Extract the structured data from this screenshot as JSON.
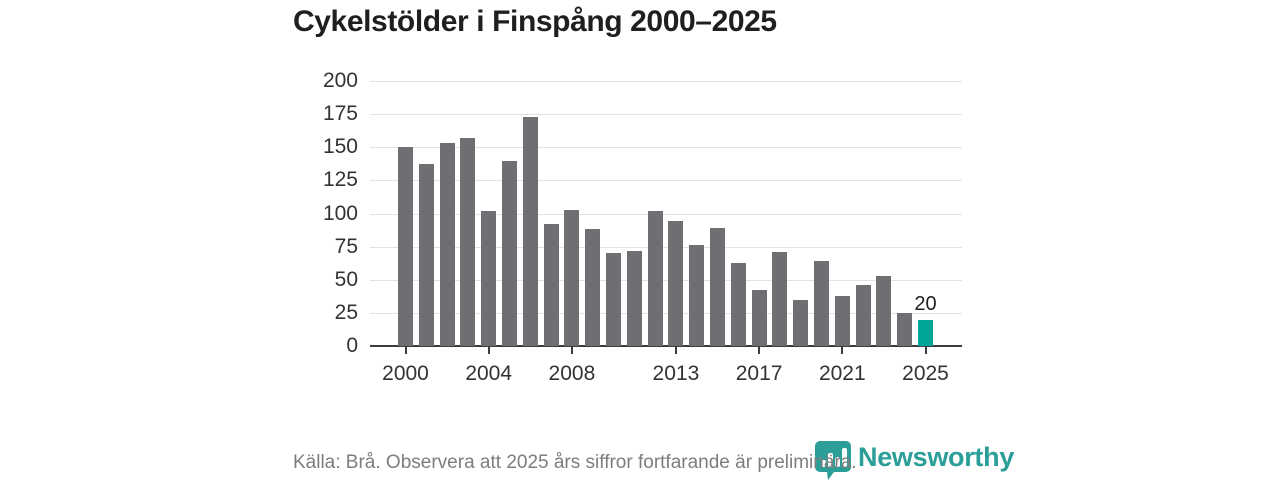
{
  "title": "Cykelstölder i Finspång 2000–2025",
  "footer": {
    "source_note": "Källa: Brå. Observera att 2025 års siffror fortfarande är preliminära."
  },
  "branding": {
    "logo_text": "Newsworthy",
    "logo_icon": "newsworthy-speech-bubble-bar-chart-icon",
    "logo_color": "#2b9e97"
  },
  "colors": {
    "bar": "#6e6e73",
    "highlight_bar": "#00a599",
    "gridline": "#e2e2e2",
    "axis": "#3d3d3d",
    "axis_text": "#333333",
    "title_text": "#1f1f1f",
    "footer_text": "#7d7d7d"
  },
  "chart_data": {
    "type": "bar",
    "title": "Cykelstölder i Finspång 2000–2025",
    "x": [
      2000,
      2001,
      2002,
      2003,
      2004,
      2005,
      2006,
      2007,
      2008,
      2009,
      2010,
      2011,
      2012,
      2013,
      2014,
      2015,
      2016,
      2017,
      2018,
      2019,
      2020,
      2021,
      2022,
      2023,
      2024,
      2025
    ],
    "values": [
      150,
      137,
      153,
      157,
      102,
      140,
      173,
      92,
      103,
      88,
      70,
      72,
      102,
      94,
      76,
      89,
      63,
      42,
      71,
      35,
      64,
      38,
      46,
      53,
      25,
      20
    ],
    "highlight": {
      "x": 2025,
      "label": "20"
    },
    "xticks": [
      2000,
      2004,
      2008,
      2013,
      2017,
      2021,
      2025
    ],
    "yticks": [
      0,
      25,
      50,
      75,
      100,
      125,
      150,
      175,
      200
    ],
    "ylim": [
      0,
      200
    ],
    "grid": true,
    "legend": false,
    "xlabel": "",
    "ylabel": ""
  }
}
